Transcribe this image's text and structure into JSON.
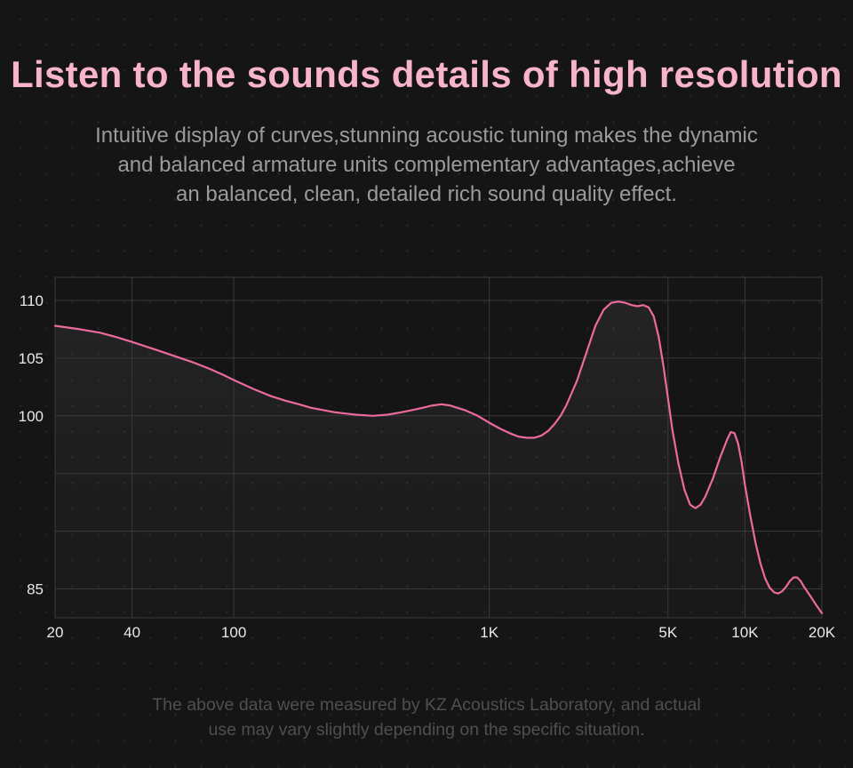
{
  "theme": {
    "background": "#151515",
    "dot_color": "#232323",
    "title_color": "#f8b4cc",
    "subtitle_color": "#9b9b9b",
    "footer_color": "#4f4f4f",
    "axis_text_color": "#e9e9e9",
    "grid_color": "#3a3a3a",
    "curve_color": "#ec6a9d"
  },
  "header": {
    "title": "Listen to the sounds details of high resolution",
    "subtitle_lines": [
      "Intuitive display of curves,stunning acoustic tuning makes the dynamic",
      "and balanced armature units complementary advantages,achieve",
      "an balanced, clean, detailed rich sound quality effect."
    ]
  },
  "footer": {
    "lines": [
      "The above data were measured by KZ Acoustics Laboratory, and actual",
      "use may vary slightly depending on the specific situation."
    ]
  },
  "chart_data": {
    "type": "line",
    "title": "",
    "xlabel": "",
    "ylabel": "",
    "x_scale": "log",
    "xlim": [
      20,
      20000
    ],
    "ylim": [
      82.5,
      112
    ],
    "grid": true,
    "legend": "none",
    "x_ticks": [
      20,
      40,
      100,
      1000,
      5000,
      10000,
      20000
    ],
    "x_tick_labels": [
      "20",
      "40",
      "100",
      "1K",
      "5K",
      "10K",
      "20K"
    ],
    "y_ticks": [
      {
        "value": 110,
        "label": "110"
      },
      {
        "value": 105,
        "label": "105"
      },
      {
        "value": 100,
        "label": "100"
      },
      {
        "value": 95,
        "label": ""
      },
      {
        "value": 90,
        "label": ""
      },
      {
        "value": 85,
        "label": "85"
      }
    ],
    "series": [
      {
        "name": "frequency-response-curve",
        "color": "#ec6a9d",
        "points": [
          [
            20,
            107.8
          ],
          [
            25,
            107.5
          ],
          [
            30,
            107.2
          ],
          [
            35,
            106.8
          ],
          [
            40,
            106.4
          ],
          [
            50,
            105.7
          ],
          [
            60,
            105.1
          ],
          [
            70,
            104.6
          ],
          [
            80,
            104.1
          ],
          [
            90,
            103.6
          ],
          [
            100,
            103.1
          ],
          [
            120,
            102.3
          ],
          [
            140,
            101.7
          ],
          [
            160,
            101.3
          ],
          [
            180,
            101.0
          ],
          [
            200,
            100.7
          ],
          [
            250,
            100.3
          ],
          [
            300,
            100.1
          ],
          [
            350,
            100.0
          ],
          [
            400,
            100.1
          ],
          [
            450,
            100.3
          ],
          [
            500,
            100.5
          ],
          [
            550,
            100.7
          ],
          [
            600,
            100.9
          ],
          [
            650,
            101.0
          ],
          [
            700,
            100.9
          ],
          [
            800,
            100.5
          ],
          [
            900,
            100.0
          ],
          [
            1000,
            99.4
          ],
          [
            1100,
            98.9
          ],
          [
            1200,
            98.5
          ],
          [
            1300,
            98.2
          ],
          [
            1400,
            98.1
          ],
          [
            1500,
            98.1
          ],
          [
            1600,
            98.3
          ],
          [
            1700,
            98.7
          ],
          [
            1800,
            99.3
          ],
          [
            1900,
            100.0
          ],
          [
            2000,
            100.9
          ],
          [
            2200,
            103.0
          ],
          [
            2400,
            105.5
          ],
          [
            2600,
            107.8
          ],
          [
            2800,
            109.2
          ],
          [
            3000,
            109.8
          ],
          [
            3200,
            109.9
          ],
          [
            3400,
            109.8
          ],
          [
            3600,
            109.6
          ],
          [
            3800,
            109.5
          ],
          [
            4000,
            109.6
          ],
          [
            4200,
            109.4
          ],
          [
            4400,
            108.6
          ],
          [
            4600,
            106.8
          ],
          [
            4800,
            104.3
          ],
          [
            5000,
            101.5
          ],
          [
            5200,
            98.8
          ],
          [
            5500,
            95.8
          ],
          [
            5800,
            93.6
          ],
          [
            6100,
            92.3
          ],
          [
            6400,
            92.0
          ],
          [
            6700,
            92.3
          ],
          [
            7000,
            93.0
          ],
          [
            7500,
            94.6
          ],
          [
            8000,
            96.4
          ],
          [
            8500,
            97.9
          ],
          [
            8800,
            98.6
          ],
          [
            9100,
            98.5
          ],
          [
            9400,
            97.6
          ],
          [
            9700,
            96.0
          ],
          [
            10000,
            94.0
          ],
          [
            10500,
            91.3
          ],
          [
            11000,
            89.0
          ],
          [
            11500,
            87.2
          ],
          [
            12000,
            85.9
          ],
          [
            12500,
            85.1
          ],
          [
            13000,
            84.7
          ],
          [
            13500,
            84.6
          ],
          [
            14000,
            84.8
          ],
          [
            14500,
            85.2
          ],
          [
            15000,
            85.7
          ],
          [
            15500,
            86.0
          ],
          [
            16000,
            86.0
          ],
          [
            16500,
            85.7
          ],
          [
            17000,
            85.2
          ],
          [
            18000,
            84.4
          ],
          [
            19000,
            83.6
          ],
          [
            20000,
            82.9
          ]
        ]
      }
    ]
  }
}
